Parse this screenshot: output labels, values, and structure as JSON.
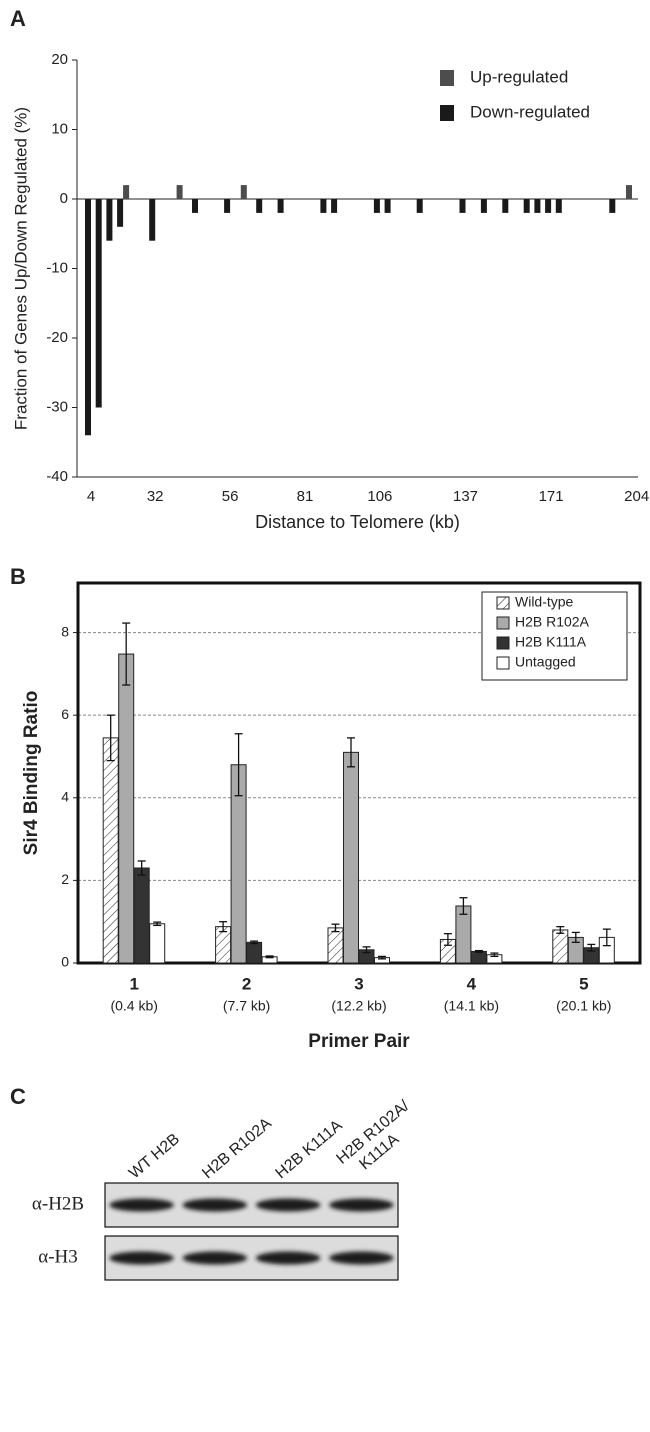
{
  "panel_labels": [
    "A",
    "B",
    "C"
  ],
  "chart_data": [
    {
      "type": "bar",
      "y_label": "Fraction of Genes Up/Down Regulated (%)",
      "x_label": "Distance to Telomere (kb)",
      "categories": [
        "4",
        null,
        null,
        null,
        null,
        null,
        "32",
        null,
        null,
        null,
        null,
        null,
        null,
        "56",
        null,
        null,
        null,
        null,
        null,
        null,
        "81",
        null,
        null,
        null,
        null,
        null,
        null,
        "106",
        null,
        null,
        null,
        null,
        null,
        null,
        null,
        "137",
        null,
        null,
        null,
        null,
        null,
        null,
        null,
        "171",
        null,
        null,
        null,
        null,
        null,
        null,
        null,
        "204"
      ],
      "series": [
        {
          "name": "Up-regulated",
          "color": "#4d4d4d",
          "values": [
            0,
            0,
            0,
            2,
            0,
            0,
            0,
            0,
            2,
            0,
            0,
            0,
            0,
            0,
            2,
            0,
            0,
            0,
            0,
            0,
            0,
            0,
            0,
            0,
            0,
            0,
            0,
            0,
            0,
            0,
            0,
            0,
            0,
            0,
            0,
            0,
            0,
            0,
            0,
            0,
            0,
            0,
            0,
            0,
            0,
            0,
            0,
            0,
            0,
            0,
            2,
            0
          ]
        },
        {
          "name": "Down-regulated",
          "color": "#1a1a1a",
          "values": [
            -34,
            -30,
            -6,
            -4,
            0,
            0,
            -6,
            0,
            0,
            0,
            -2,
            0,
            0,
            -2,
            0,
            0,
            -2,
            0,
            -2,
            0,
            0,
            0,
            -2,
            -2,
            0,
            0,
            0,
            -2,
            -2,
            0,
            0,
            -2,
            0,
            0,
            0,
            -2,
            0,
            -2,
            0,
            -2,
            0,
            -2,
            -2,
            -2,
            -2,
            0,
            0,
            0,
            0,
            -2,
            0,
            0
          ]
        }
      ],
      "ylim": [
        -40,
        20
      ],
      "yticks": [
        -40,
        -30,
        -20,
        -10,
        0,
        10,
        20
      ],
      "grid": false,
      "legend": "upper right"
    },
    {
      "type": "bar",
      "y_label": "Sir4 Binding Ratio",
      "x_label": "Primer Pair",
      "categories": [
        "1",
        "2",
        "3",
        "4",
        "5"
      ],
      "category_notes": [
        "(0.4 kb)",
        "(7.7 kb)",
        "(12.2 kb)",
        "(14.1 kb)",
        "(20.1 kb)"
      ],
      "series": [
        {
          "name": "Wild-type",
          "color": "#ffffff",
          "hatch": true,
          "values": [
            5.45,
            0.88,
            0.85,
            0.57,
            0.8
          ],
          "errors": [
            0.55,
            0.12,
            0.09,
            0.14,
            0.08
          ]
        },
        {
          "name": "H2B R102A",
          "color": "#aaaaaa",
          "values": [
            7.48,
            4.8,
            5.1,
            1.38,
            0.62
          ],
          "errors": [
            0.75,
            0.75,
            0.35,
            0.2,
            0.12
          ]
        },
        {
          "name": "H2B K111A",
          "color": "#333333",
          "values": [
            2.3,
            0.5,
            0.32,
            0.28,
            0.37
          ],
          "errors": [
            0.17,
            0.03,
            0.07,
            0.02,
            0.08
          ]
        },
        {
          "name": "Untagged",
          "color": "#ffffff",
          "values": [
            0.95,
            0.15,
            0.13,
            0.2,
            0.62
          ],
          "errors": [
            0.04,
            0.02,
            0.03,
            0.04,
            0.2
          ]
        }
      ],
      "ylim": [
        0,
        9.2
      ],
      "yticks": [
        0,
        2,
        4,
        6,
        8
      ],
      "grid": true,
      "legend": "upper right"
    }
  ],
  "blot": {
    "lanes": [
      [
        "WT H2B"
      ],
      [
        "H2B R102A"
      ],
      [
        "H2B K111A"
      ],
      [
        "H2B R102A/",
        "K111A"
      ]
    ],
    "rows": [
      "α-H2B",
      "α-H3"
    ]
  }
}
